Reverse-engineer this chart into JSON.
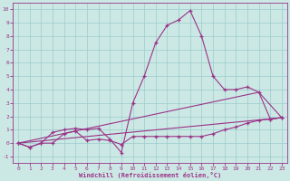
{
  "title": "",
  "xlabel": "Windchill (Refroidissement éolien,°C)",
  "ylabel": "",
  "bg_color": "#cce8e4",
  "line_color": "#993388",
  "grid_color": "#99cccc",
  "xlim": [
    -0.5,
    23.5
  ],
  "ylim": [
    -1.5,
    10.5
  ],
  "xticks": [
    0,
    1,
    2,
    3,
    4,
    5,
    6,
    7,
    8,
    9,
    10,
    11,
    12,
    13,
    14,
    15,
    16,
    17,
    18,
    19,
    20,
    21,
    22,
    23
  ],
  "yticks": [
    -1,
    0,
    1,
    2,
    3,
    4,
    5,
    6,
    7,
    8,
    9,
    10
  ],
  "line1_x": [
    0,
    1,
    2,
    3,
    4,
    5,
    6,
    7,
    8,
    9,
    10,
    11,
    12,
    13,
    14,
    15,
    16,
    17,
    18,
    19,
    20,
    21,
    22,
    23
  ],
  "line1_y": [
    0,
    -0.3,
    0,
    0.0,
    0.7,
    0.9,
    0.2,
    0.3,
    0.2,
    -0.1,
    0.5,
    0.5,
    0.5,
    0.5,
    0.5,
    0.5,
    0.5,
    0.7,
    1.0,
    1.2,
    1.5,
    1.7,
    1.8,
    1.9
  ],
  "line2_x": [
    0,
    1,
    2,
    3,
    4,
    5,
    6,
    7,
    8,
    9,
    10,
    11,
    12,
    13,
    14,
    15,
    16,
    17,
    18,
    19,
    20,
    21,
    22,
    23
  ],
  "line2_y": [
    0,
    -0.3,
    0,
    0.8,
    1.0,
    1.1,
    1.0,
    1.1,
    0.3,
    -0.7,
    3.0,
    5.0,
    7.5,
    8.8,
    9.2,
    9.9,
    8.0,
    5.0,
    4.0,
    4.0,
    4.2,
    3.8,
    1.8,
    1.9
  ],
  "line3_x": [
    0,
    21,
    23
  ],
  "line3_y": [
    0,
    3.8,
    1.9
  ],
  "line4_x": [
    0,
    23
  ],
  "line4_y": [
    0,
    1.9
  ]
}
